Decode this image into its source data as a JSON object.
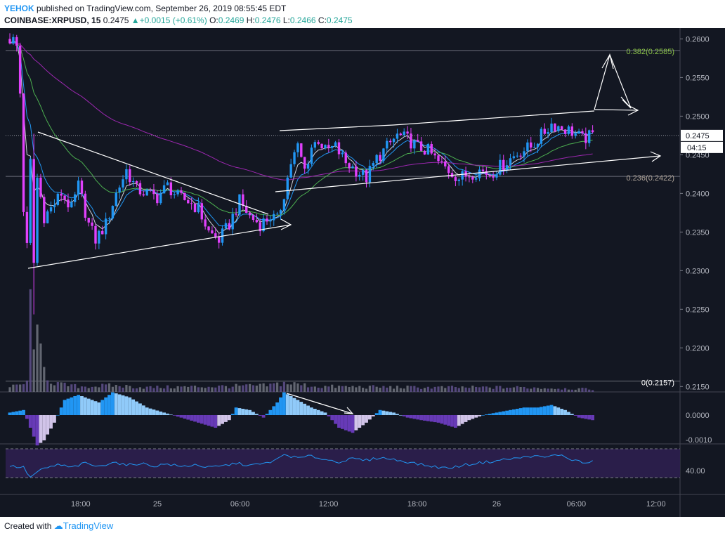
{
  "header": {
    "user": "YEHOK",
    "published": "published on TradingView.com, September 26, 2019 08:55:45 EDT",
    "symbol": "COINBASE:XRPUSD, 15",
    "last": "0.2475",
    "change": "+0.0015 (+0.61%)",
    "o_label": "O:",
    "o": "0.2469",
    "h_label": "H:",
    "h": "0.2476",
    "l_label": "L:",
    "l": "0.2466",
    "c_label": "C:",
    "c": "0.2475"
  },
  "footer": {
    "created": "Created with",
    "brand": "TradingView"
  },
  "colors": {
    "background": "#131722",
    "up": "#2196f3",
    "down": "#e040fb",
    "grid": "#2a2e39",
    "ema_white": "#d1d4dc",
    "ema_blue": "#2196f3",
    "ema_green": "#4caf50",
    "ema_purple": "#9c27b0",
    "fib": "#6a6d78",
    "fib382": "#8bc34a",
    "fib236": "#b0a59a",
    "pricebox": "#ffffff",
    "volume": "#9598a1",
    "macd_pos": "#2196f3",
    "macd_pos_light": "#90caf9",
    "macd_neg": "#673ab7",
    "macd_neg_light": "#d1c4e9",
    "rsi": "#2196f3",
    "rsi_band": "#2d1f4f"
  },
  "chart_data": {
    "type": "candlestick",
    "yaxis": {
      "range": [
        0.2143,
        0.2614
      ],
      "ticks": [
        "0.2600",
        "0.2550",
        "0.2500",
        "0.2450",
        "0.2400",
        "0.2350",
        "0.2300",
        "0.2250",
        "0.2200",
        "0.2150"
      ]
    },
    "xaxis": {
      "ticks": [
        "18:00",
        "25",
        "06:00",
        "12:00",
        "18:00",
        "26",
        "06:00",
        "12:00"
      ]
    },
    "current_price": "0.2475",
    "countdown": "04:15",
    "fib_levels": [
      {
        "label": "0.382(0.2585)",
        "value": 0.2585
      },
      {
        "label": "0.236(0.2422)",
        "value": 0.2422
      },
      {
        "label": "0(0.2157)",
        "value": 0.2157
      }
    ],
    "macd_ticks": [
      "0.0000",
      "-0.0010"
    ],
    "rsi_ticks": [
      "40.00"
    ],
    "candle_anchors": [
      [
        0,
        0.26
      ],
      [
        1,
        0.2598
      ],
      [
        2,
        0.259
      ],
      [
        3,
        0.253
      ],
      [
        4,
        0.238
      ],
      [
        5,
        0.233
      ],
      [
        6,
        0.244
      ],
      [
        7,
        0.231
      ],
      [
        8,
        0.242
      ],
      [
        10,
        0.237
      ],
      [
        12,
        0.238
      ],
      [
        15,
        0.24
      ],
      [
        18,
        0.238
      ],
      [
        20,
        0.241
      ],
      [
        23,
        0.236
      ],
      [
        25,
        0.234
      ],
      [
        28,
        0.236
      ],
      [
        31,
        0.24
      ],
      [
        34,
        0.243
      ],
      [
        37,
        0.2405
      ],
      [
        40,
        0.24
      ],
      [
        43,
        0.2395
      ],
      [
        46,
        0.241
      ],
      [
        49,
        0.2395
      ],
      [
        52,
        0.239
      ],
      [
        55,
        0.238
      ],
      [
        58,
        0.235
      ],
      [
        61,
        0.234
      ],
      [
        64,
        0.236
      ],
      [
        67,
        0.239
      ],
      [
        70,
        0.237
      ],
      [
        73,
        0.236
      ],
      [
        76,
        0.237
      ],
      [
        78,
        0.2365
      ],
      [
        80,
        0.24
      ],
      [
        82,
        0.244
      ],
      [
        84,
        0.246
      ],
      [
        86,
        0.243
      ],
      [
        88,
        0.246
      ],
      [
        90,
        0.247
      ],
      [
        92,
        0.2455
      ],
      [
        95,
        0.246
      ],
      [
        98,
        0.244
      ],
      [
        101,
        0.243
      ],
      [
        104,
        0.242
      ],
      [
        107,
        0.2445
      ],
      [
        110,
        0.246
      ],
      [
        113,
        0.2475
      ],
      [
        116,
        0.247
      ],
      [
        119,
        0.246
      ],
      [
        122,
        0.2455
      ],
      [
        125,
        0.244
      ],
      [
        128,
        0.243
      ],
      [
        131,
        0.242
      ],
      [
        134,
        0.2425
      ],
      [
        137,
        0.243
      ],
      [
        140,
        0.2425
      ],
      [
        143,
        0.2435
      ],
      [
        146,
        0.2445
      ],
      [
        149,
        0.2455
      ],
      [
        152,
        0.246
      ],
      [
        155,
        0.2475
      ],
      [
        158,
        0.249
      ],
      [
        161,
        0.2485
      ],
      [
        164,
        0.248
      ],
      [
        167,
        0.247
      ],
      [
        170,
        0.2475
      ]
    ],
    "volume_anchors": [
      [
        0,
        0.05
      ],
      [
        5,
        0.1
      ],
      [
        6,
        1.0
      ],
      [
        7,
        0.7
      ],
      [
        8,
        0.55
      ],
      [
        10,
        0.25
      ],
      [
        12,
        0.12
      ],
      [
        15,
        0.08
      ],
      [
        20,
        0.06
      ],
      [
        30,
        0.07
      ],
      [
        40,
        0.05
      ],
      [
        60,
        0.06
      ],
      [
        75,
        0.07
      ],
      [
        80,
        0.1
      ],
      [
        85,
        0.08
      ],
      [
        90,
        0.06
      ],
      [
        120,
        0.05
      ],
      [
        150,
        0.05
      ],
      [
        170,
        0.03
      ]
    ],
    "macd_anchors": [
      [
        0,
        0.0001
      ],
      [
        4,
        0.0002
      ],
      [
        6,
        -0.0005
      ],
      [
        8,
        -0.0012
      ],
      [
        10,
        -0.001
      ],
      [
        13,
        -0.0003
      ],
      [
        16,
        0.0006
      ],
      [
        20,
        0.0008
      ],
      [
        26,
        0.0005
      ],
      [
        30,
        0.0009
      ],
      [
        35,
        0.0007
      ],
      [
        40,
        0.0003
      ],
      [
        45,
        0.0001
      ],
      [
        50,
        -0.0001
      ],
      [
        55,
        -0.0003
      ],
      [
        60,
        -0.0005
      ],
      [
        64,
        -0.0002
      ],
      [
        66,
        0.0003
      ],
      [
        70,
        0.0002
      ],
      [
        74,
        -0.0001
      ],
      [
        78,
        0.0005
      ],
      [
        80,
        0.0009
      ],
      [
        84,
        0.0006
      ],
      [
        88,
        0.0003
      ],
      [
        92,
        0.0001
      ],
      [
        96,
        -0.0005
      ],
      [
        100,
        -0.0007
      ],
      [
        104,
        -0.0003
      ],
      [
        108,
        0.0002
      ],
      [
        112,
        0.0001
      ],
      [
        116,
        -0.0001
      ],
      [
        120,
        -0.0002
      ],
      [
        125,
        -0.0003
      ],
      [
        130,
        -0.0005
      ],
      [
        134,
        -0.0002
      ],
      [
        138,
        0.0
      ],
      [
        142,
        0.0001
      ],
      [
        146,
        0.0002
      ],
      [
        150,
        0.0003
      ],
      [
        154,
        0.0003
      ],
      [
        158,
        0.0004
      ],
      [
        162,
        0.0002
      ],
      [
        166,
        -0.0001
      ],
      [
        170,
        -0.0002
      ]
    ],
    "rsi_anchors": [
      [
        0,
        46
      ],
      [
        4,
        44
      ],
      [
        6,
        30
      ],
      [
        8,
        38
      ],
      [
        10,
        42
      ],
      [
        14,
        48
      ],
      [
        18,
        44
      ],
      [
        22,
        50
      ],
      [
        26,
        45
      ],
      [
        30,
        52
      ],
      [
        34,
        47
      ],
      [
        38,
        50
      ],
      [
        42,
        46
      ],
      [
        46,
        49
      ],
      [
        50,
        45
      ],
      [
        54,
        48
      ],
      [
        58,
        44
      ],
      [
        62,
        46
      ],
      [
        66,
        50
      ],
      [
        70,
        47
      ],
      [
        74,
        49
      ],
      [
        78,
        55
      ],
      [
        80,
        62
      ],
      [
        84,
        57
      ],
      [
        88,
        60
      ],
      [
        92,
        55
      ],
      [
        96,
        52
      ],
      [
        100,
        56
      ],
      [
        104,
        54
      ],
      [
        108,
        58
      ],
      [
        112,
        55
      ],
      [
        116,
        52
      ],
      [
        120,
        48
      ],
      [
        124,
        45
      ],
      [
        128,
        43
      ],
      [
        132,
        47
      ],
      [
        136,
        50
      ],
      [
        140,
        52
      ],
      [
        144,
        55
      ],
      [
        148,
        57
      ],
      [
        152,
        60
      ],
      [
        156,
        58
      ],
      [
        160,
        62
      ],
      [
        164,
        55
      ],
      [
        168,
        50
      ],
      [
        170,
        52
      ]
    ]
  }
}
